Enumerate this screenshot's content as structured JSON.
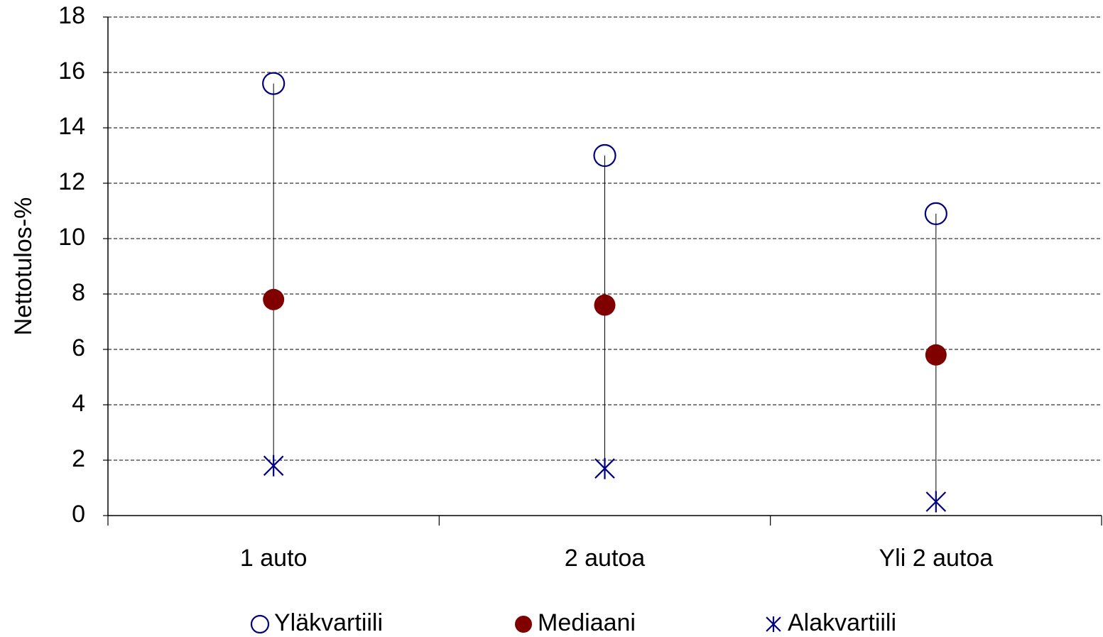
{
  "chart_data": {
    "type": "line",
    "y_label": "Nettotulos-%",
    "categories": [
      "1 auto",
      "2 autoa",
      "Yli 2 autoa"
    ],
    "series": [
      {
        "name": "Yläkvartiili",
        "color": "#000080",
        "marker": "circle-open",
        "values": [
          15.6,
          13.0,
          10.9
        ]
      },
      {
        "name": "Mediaani",
        "color": "#800000",
        "marker": "circle-filled",
        "values": [
          7.8,
          7.6,
          5.8
        ]
      },
      {
        "name": "Alakvartiili",
        "color": "#000080",
        "marker": "asterisk",
        "values": [
          1.8,
          1.7,
          0.5
        ]
      }
    ],
    "high_low_lines": true,
    "ylim": [
      0,
      18
    ],
    "yticks": [
      0,
      2,
      4,
      6,
      8,
      10,
      12,
      14,
      16,
      18
    ],
    "grid": true,
    "legend": "bottom"
  }
}
